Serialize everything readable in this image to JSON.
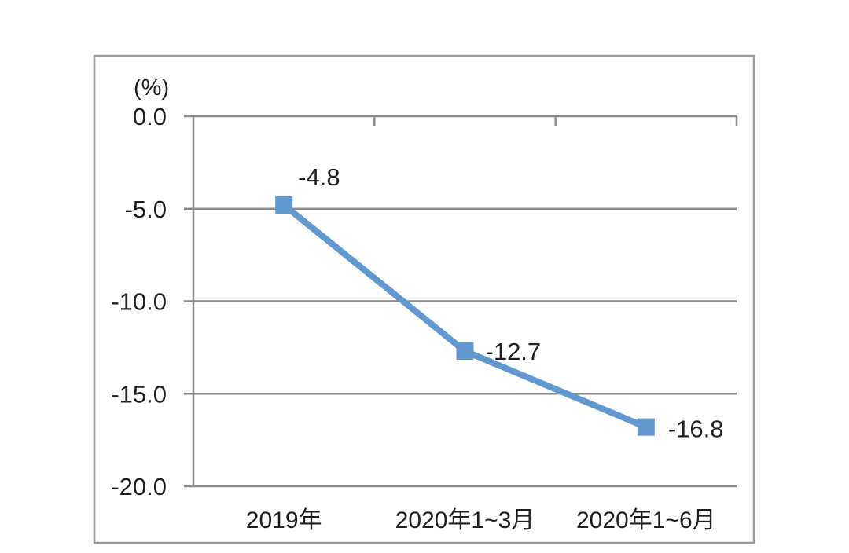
{
  "chart_data": {
    "type": "line",
    "categories": [
      "2019年",
      "2020年1~3月",
      "2020年1~6月"
    ],
    "values": [
      -4.8,
      -12.7,
      -16.8
    ],
    "data_labels": [
      "-4.8",
      "-12.7",
      "-16.8"
    ],
    "series_name": "",
    "title": "",
    "xlabel": "",
    "ylabel": "(%)",
    "ylim": [
      -20,
      0
    ],
    "ytick_interval": 5,
    "yticks": [
      "0.0",
      "-5.0",
      "-10.0",
      "-15.0",
      "-20.0"
    ],
    "grid": true,
    "legend": "none",
    "marker": "square",
    "colors": {
      "line": "#6298D0",
      "marker": "#6298D0",
      "gridline": "#8C8C8C",
      "axis": "#8C8C8C",
      "frame_border": "#9B9B9B",
      "text": "#1F1F1F",
      "background": "#FFFFFF"
    }
  }
}
